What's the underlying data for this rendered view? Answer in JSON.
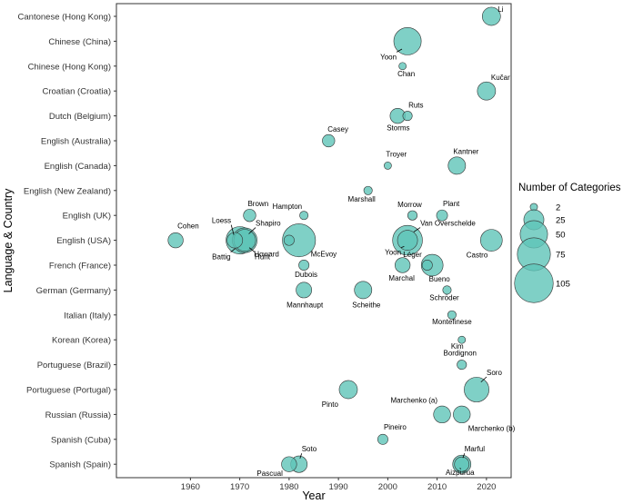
{
  "chart_data": {
    "type": "scatter",
    "xlabel": "Year",
    "ylabel": "Language & Country",
    "xlim": [
      1945,
      2025
    ],
    "x_ticks": [
      "1960",
      "1970",
      "1980",
      "1990",
      "2000",
      "2010",
      "2020"
    ],
    "categories": [
      "Cantonese (Hong Kong)",
      "Chinese (China)",
      "Chinese (Hong Kong)",
      "Croatian (Croatia)",
      "Dutch (Belgium)",
      "English (Australia)",
      "English (Canada)",
      "English (New Zealand)",
      "English (UK)",
      "English (USA)",
      "French (France)",
      "German (Germany)",
      "Italian (Italy)",
      "Korean (Korea)",
      "Portuguese (Brazil)",
      "Portuguese (Portugal)",
      "Russian (Russia)",
      "Spanish (Cuba)",
      "Spanish (Spain)"
    ],
    "fill_color": "#5fc4b8",
    "stroke_color": "#333333",
    "grid": false,
    "legend": {
      "title": "Number of Categories",
      "position": "right",
      "sizes": [
        2,
        25,
        50,
        75,
        105
      ]
    },
    "points": [
      {
        "label": "Li",
        "x": 2021,
        "category": "Cantonese (Hong Kong)",
        "size": 20
      },
      {
        "label": "Yoon",
        "x": 2004,
        "category": "Chinese (China)",
        "size": 50
      },
      {
        "label": "Chan",
        "x": 2003,
        "category": "Chinese (Hong Kong)",
        "size": 2
      },
      {
        "label": "Kučar",
        "x": 2020,
        "category": "Croatian (Croatia)",
        "size": 20
      },
      {
        "label": "Ruts",
        "x": 2004,
        "category": "Dutch (Belgium)",
        "size": 4
      },
      {
        "label": "Storms",
        "x": 2002,
        "category": "Dutch (Belgium)",
        "size": 13
      },
      {
        "label": "Casey",
        "x": 1988,
        "category": "English (Australia)",
        "size": 8
      },
      {
        "label": "Kantner",
        "x": 2014,
        "category": "English (Canada)",
        "size": 18
      },
      {
        "label": "Troyer",
        "x": 2000,
        "category": "English (Canada)",
        "size": 2
      },
      {
        "label": "Marshall",
        "x": 1996,
        "category": "English (New Zealand)",
        "size": 3
      },
      {
        "label": "Brown",
        "x": 1972,
        "category": "English (UK)",
        "size": 8
      },
      {
        "label": "Hampton",
        "x": 1983,
        "category": "English (UK)",
        "size": 3
      },
      {
        "label": "Morrow",
        "x": 2005,
        "category": "English (UK)",
        "size": 4
      },
      {
        "label": "Plant",
        "x": 2011,
        "category": "English (UK)",
        "size": 6
      },
      {
        "label": "Cohen",
        "x": 1957,
        "category": "English (USA)",
        "size": 13
      },
      {
        "label": "Loess",
        "x": 1969,
        "category": "English (USA)",
        "size": 14
      },
      {
        "label": "Shapiro",
        "x": 1971,
        "category": "English (USA)",
        "size": 30
      },
      {
        "label": "Battig",
        "x": 1970,
        "category": "English (USA)",
        "size": 50
      },
      {
        "label": "Hunt",
        "x": 1971,
        "category": "English (USA)",
        "size": 40
      },
      {
        "label": "Howard",
        "x": 1980,
        "category": "English (USA)",
        "size": 5
      },
      {
        "label": "McEvoy",
        "x": 1982,
        "category": "English (USA)",
        "size": 75
      },
      {
        "label": "Van Overschelde",
        "x": 2004,
        "category": "English (USA)",
        "size": 60
      },
      {
        "label": "Yoon",
        "x": 2004,
        "category": "English (USA)",
        "size": 25
      },
      {
        "label": "Castro",
        "x": 2021,
        "category": "English (USA)",
        "size": 30
      },
      {
        "label": "Dubois",
        "x": 1983,
        "category": "French (France)",
        "size": 5
      },
      {
        "label": "Marchal",
        "x": 2003,
        "category": "French (France)",
        "size": 13
      },
      {
        "label": "Léger",
        "x": 2008,
        "category": "French (France)",
        "size": 5
      },
      {
        "label": "Bueno",
        "x": 2009,
        "category": "French (France)",
        "size": 30
      },
      {
        "label": "Mannhaupt",
        "x": 1983,
        "category": "German (Germany)",
        "size": 14
      },
      {
        "label": "Scheithe",
        "x": 1995,
        "category": "German (Germany)",
        "size": 18
      },
      {
        "label": "Schröder",
        "x": 2012,
        "category": "German (Germany)",
        "size": 3
      },
      {
        "label": "Montefinese",
        "x": 2013,
        "category": "Italian (Italy)",
        "size": 3
      },
      {
        "label": "Kim",
        "x": 2015,
        "category": "Korean (Korea)",
        "size": 2
      },
      {
        "label": "Bordignon",
        "x": 2015,
        "category": "Portuguese (Brazil)",
        "size": 4
      },
      {
        "label": "Pinto",
        "x": 1992,
        "category": "Portuguese (Portugal)",
        "size": 20
      },
      {
        "label": "Soro",
        "x": 2018,
        "category": "Portuguese (Portugal)",
        "size": 40
      },
      {
        "label": "Marchenko (a)",
        "x": 2011,
        "category": "Russian (Russia)",
        "size": 17
      },
      {
        "label": "Marchenko (b)",
        "x": 2015,
        "category": "Russian (Russia)",
        "size": 17
      },
      {
        "label": "Pineiro",
        "x": 1999,
        "category": "Spanish (Cuba)",
        "size": 5
      },
      {
        "label": "Pascual",
        "x": 1980,
        "category": "Spanish (Spain)",
        "size": 13
      },
      {
        "label": "Soto",
        "x": 1982,
        "category": "Spanish (Spain)",
        "size": 16
      },
      {
        "label": "Marful",
        "x": 2015,
        "category": "Spanish (Spain)",
        "size": 20
      },
      {
        "label": "Aizpurua",
        "x": 2015,
        "category": "Spanish (Spain)",
        "size": 12
      }
    ]
  }
}
